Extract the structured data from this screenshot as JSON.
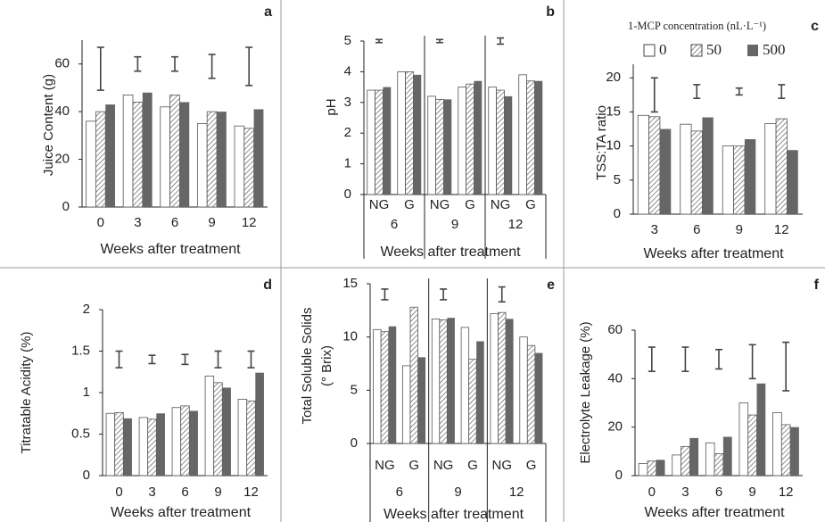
{
  "chart_data": [
    {
      "type": "bar",
      "letter": "a",
      "y_label": "Juice Content (g)",
      "x_label": "Weeks after treatment",
      "categories": [
        0,
        3,
        6,
        9,
        12
      ],
      "ylim": [
        0,
        70
      ],
      "yticks": [
        0,
        20,
        40,
        60
      ],
      "series": [
        {
          "color": "#ffffff",
          "values": [
            36,
            47,
            42,
            35,
            34
          ]
        },
        {
          "color": "#ffffff",
          "pattern": "hatch",
          "values": [
            40,
            44,
            47,
            40,
            33
          ]
        },
        {
          "color": "#666666",
          "values": [
            43,
            48,
            44,
            40,
            41
          ]
        }
      ],
      "error_bars": {
        "center": [
          58,
          60,
          60,
          59,
          59
        ],
        "error": [
          9,
          3,
          3,
          5,
          8
        ]
      }
    },
    {
      "type": "bar",
      "letter": "b",
      "y_label": "pH",
      "x_label": "Weeks after treatment",
      "categories": [
        "NG",
        "G",
        "NG",
        "G",
        "NG",
        "G"
      ],
      "groups": [
        6,
        9,
        12
      ],
      "ylim": [
        0,
        5
      ],
      "yticks": [
        0,
        1,
        2,
        3,
        4,
        5
      ],
      "series": [
        {
          "color": "#ffffff",
          "values": [
            3.4,
            4.0,
            3.2,
            3.5,
            3.5,
            3.9
          ]
        },
        {
          "color": "#ffffff",
          "pattern": "hatch",
          "values": [
            3.4,
            4.0,
            3.1,
            3.6,
            3.4,
            3.7
          ]
        },
        {
          "color": "#666666",
          "values": [
            3.5,
            3.9,
            3.1,
            3.7,
            3.2,
            3.7
          ]
        }
      ],
      "error_bars": {
        "center": [
          5.0,
          5.0,
          5.0
        ],
        "error": [
          0.05,
          0.05,
          0.1
        ]
      }
    },
    {
      "type": "bar",
      "letter": "c",
      "y_label": "TSS:TA ratio",
      "x_label": "Weeks after treatment",
      "legend_title": "1-MCP concentration (nL·L⁻¹)",
      "categories": [
        3,
        6,
        9,
        12
      ],
      "ylim": [
        0,
        22
      ],
      "yticks": [
        0,
        5,
        10,
        15,
        20
      ],
      "series": [
        {
          "name": "0",
          "color": "#ffffff",
          "values": [
            14.5,
            13.2,
            10,
            13.3
          ]
        },
        {
          "name": "50",
          "color": "#ffffff",
          "pattern": "hatch",
          "values": [
            14.3,
            12.2,
            10,
            14
          ]
        },
        {
          "name": "500",
          "color": "#666666",
          "values": [
            12.5,
            14.2,
            11,
            9.4
          ]
        }
      ],
      "error_bars": {
        "center": [
          17.5,
          18,
          18,
          18
        ],
        "error": [
          2.5,
          1,
          0.5,
          1
        ]
      }
    },
    {
      "type": "bar",
      "letter": "d",
      "y_label": "Titratable Acidity (%)",
      "x_label": "Weeks after treatment",
      "categories": [
        0,
        3,
        6,
        9,
        12
      ],
      "ylim": [
        0,
        2
      ],
      "yticks": [
        0,
        0.5,
        1,
        1.5,
        2
      ],
      "series": [
        {
          "color": "#ffffff",
          "values": [
            0.75,
            0.7,
            0.82,
            1.2,
            0.92
          ]
        },
        {
          "color": "#ffffff",
          "pattern": "hatch",
          "values": [
            0.76,
            0.68,
            0.84,
            1.12,
            0.9
          ]
        },
        {
          "color": "#666666",
          "values": [
            0.69,
            0.75,
            0.78,
            1.06,
            1.24
          ]
        }
      ],
      "error_bars": {
        "center": [
          1.4,
          1.4,
          1.4,
          1.4,
          1.4
        ],
        "error": [
          0.1,
          0.05,
          0.06,
          0.1,
          0.1
        ]
      }
    },
    {
      "type": "bar",
      "letter": "e",
      "y_label": [
        "Total Soluble Solids",
        "(° Brix)"
      ],
      "x_label": "Weeks after treatment",
      "categories": [
        "NG",
        "G",
        "NG",
        "G",
        "NG",
        "G"
      ],
      "groups": [
        6,
        9,
        12
      ],
      "ylim": [
        0,
        15
      ],
      "yticks": [
        0,
        5,
        10,
        15
      ],
      "series": [
        {
          "color": "#ffffff",
          "values": [
            10.7,
            7.3,
            11.7,
            10.9,
            12.2,
            10
          ]
        },
        {
          "color": "#ffffff",
          "pattern": "hatch",
          "values": [
            10.5,
            12.8,
            11.6,
            7.9,
            12.3,
            9.2
          ]
        },
        {
          "color": "#666666",
          "values": [
            11,
            8.1,
            11.8,
            9.6,
            11.7,
            8.5
          ]
        }
      ],
      "error_bars": {
        "center": [
          14,
          14,
          14
        ],
        "error": [
          0.5,
          0.5,
          0.7
        ]
      }
    },
    {
      "type": "bar",
      "letter": "f",
      "y_label": "Electrolyte Leakage (%)",
      "x_label": "Weeks after treatment",
      "categories": [
        0,
        3,
        6,
        9,
        12
      ],
      "ylim": [
        0,
        60
      ],
      "yticks": [
        0,
        20,
        40,
        60
      ],
      "series": [
        {
          "color": "#ffffff",
          "values": [
            5,
            8.5,
            13.5,
            30,
            26
          ]
        },
        {
          "color": "#ffffff",
          "pattern": "hatch",
          "values": [
            6,
            12,
            9,
            25,
            21
          ]
        },
        {
          "color": "#666666",
          "values": [
            6.5,
            15.5,
            16,
            38,
            20
          ]
        }
      ],
      "error_bars": {
        "center": [
          48,
          48,
          48,
          47,
          45
        ],
        "error": [
          5,
          5,
          4,
          7,
          10
        ]
      }
    }
  ]
}
